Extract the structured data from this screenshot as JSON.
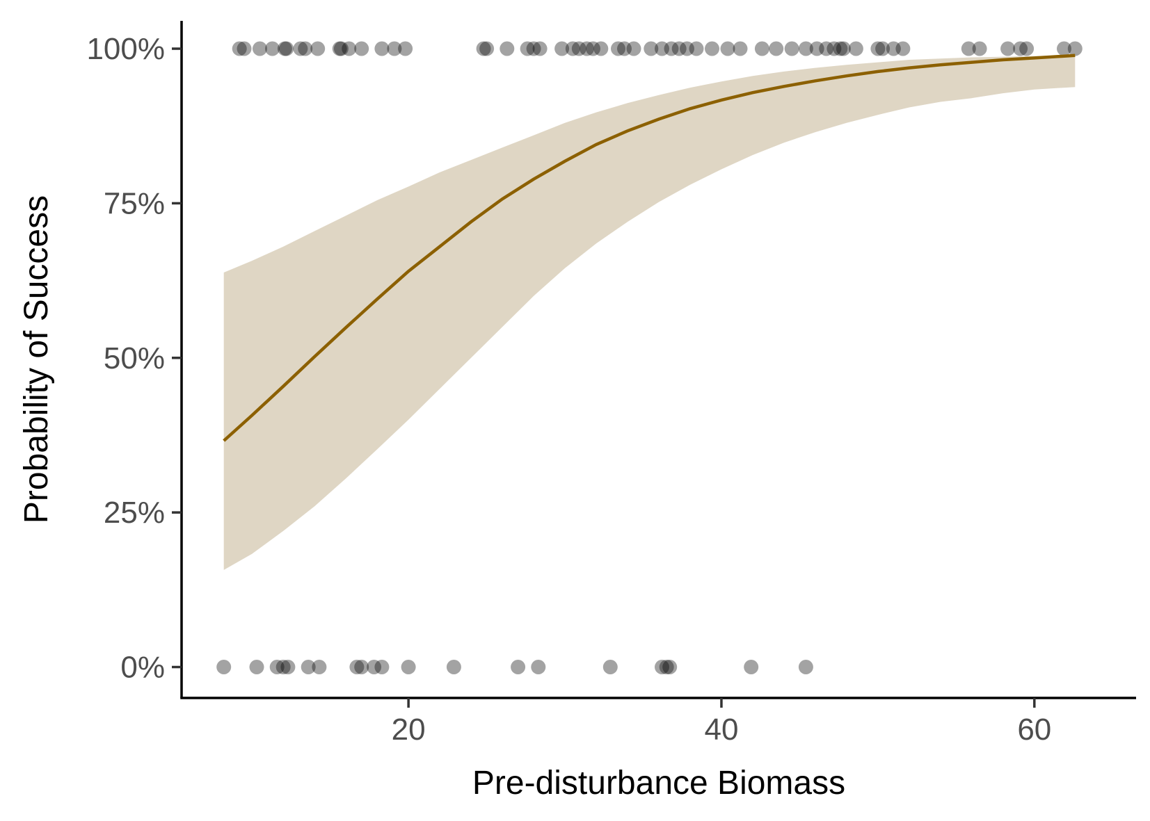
{
  "chart_data": {
    "type": "scatter",
    "title": "",
    "xlabel": "Pre-disturbance Biomass",
    "ylabel": "Probability of Success",
    "xlim": [
      5.5,
      66.5
    ],
    "ylim": [
      -0.05,
      1.045
    ],
    "x_ticks": [
      {
        "value": 20,
        "label": "20"
      },
      {
        "value": 40,
        "label": "40"
      },
      {
        "value": 60,
        "label": "60"
      }
    ],
    "y_ticks": [
      {
        "value": 0,
        "label": "0%"
      },
      {
        "value": 0.25,
        "label": "25%"
      },
      {
        "value": 0.5,
        "label": "50%"
      },
      {
        "value": 0.75,
        "label": "75%"
      },
      {
        "value": 1,
        "label": "100%"
      }
    ],
    "grid": false,
    "legend": "none",
    "colors": {
      "fit_line": "#8c6000",
      "ribbon": "#dfd6c4",
      "points": "#000000"
    },
    "fit": {
      "x": [
        8.2,
        10,
        12,
        14,
        16,
        18,
        20,
        22,
        24,
        26,
        28,
        30,
        32,
        34,
        36,
        38,
        40,
        42,
        44,
        46,
        48,
        50,
        52,
        54,
        56,
        58,
        60,
        62.6
      ],
      "y": [
        0.366,
        0.407,
        0.454,
        0.502,
        0.549,
        0.595,
        0.64,
        0.68,
        0.72,
        0.757,
        0.789,
        0.818,
        0.845,
        0.867,
        0.886,
        0.903,
        0.917,
        0.929,
        0.939,
        0.948,
        0.956,
        0.963,
        0.969,
        0.974,
        0.978,
        0.982,
        0.985,
        0.989
      ],
      "lower": [
        0.157,
        0.183,
        0.22,
        0.26,
        0.305,
        0.352,
        0.4,
        0.45,
        0.5,
        0.55,
        0.6,
        0.645,
        0.685,
        0.72,
        0.752,
        0.78,
        0.805,
        0.828,
        0.848,
        0.865,
        0.88,
        0.893,
        0.905,
        0.914,
        0.92,
        0.928,
        0.934,
        0.938
      ],
      "upper": [
        0.638,
        0.657,
        0.68,
        0.705,
        0.73,
        0.755,
        0.777,
        0.8,
        0.82,
        0.84,
        0.86,
        0.88,
        0.897,
        0.912,
        0.925,
        0.937,
        0.947,
        0.956,
        0.963,
        0.969,
        0.974,
        0.978,
        0.982,
        0.984,
        0.986,
        0.987,
        0.988,
        0.99
      ]
    },
    "points": [
      {
        "x": 9.2,
        "y": 1
      },
      {
        "x": 9.5,
        "y": 1
      },
      {
        "x": 10.5,
        "y": 1
      },
      {
        "x": 11.3,
        "y": 1
      },
      {
        "x": 12.1,
        "y": 1
      },
      {
        "x": 12.2,
        "y": 1
      },
      {
        "x": 13.1,
        "y": 1
      },
      {
        "x": 13.4,
        "y": 1
      },
      {
        "x": 14.2,
        "y": 1
      },
      {
        "x": 15.6,
        "y": 1
      },
      {
        "x": 15.7,
        "y": 1
      },
      {
        "x": 16.2,
        "y": 1
      },
      {
        "x": 17.0,
        "y": 1
      },
      {
        "x": 18.3,
        "y": 1
      },
      {
        "x": 19.1,
        "y": 1
      },
      {
        "x": 19.8,
        "y": 1
      },
      {
        "x": 24.8,
        "y": 1
      },
      {
        "x": 25.0,
        "y": 1
      },
      {
        "x": 26.3,
        "y": 1
      },
      {
        "x": 27.6,
        "y": 1
      },
      {
        "x": 28.0,
        "y": 1
      },
      {
        "x": 28.4,
        "y": 1
      },
      {
        "x": 29.8,
        "y": 1
      },
      {
        "x": 30.5,
        "y": 1
      },
      {
        "x": 30.9,
        "y": 1
      },
      {
        "x": 31.4,
        "y": 1
      },
      {
        "x": 31.8,
        "y": 1
      },
      {
        "x": 32.3,
        "y": 1
      },
      {
        "x": 33.4,
        "y": 1
      },
      {
        "x": 33.8,
        "y": 1
      },
      {
        "x": 34.4,
        "y": 1
      },
      {
        "x": 35.5,
        "y": 1
      },
      {
        "x": 36.2,
        "y": 1
      },
      {
        "x": 36.8,
        "y": 1
      },
      {
        "x": 37.3,
        "y": 1
      },
      {
        "x": 37.8,
        "y": 1
      },
      {
        "x": 38.4,
        "y": 1
      },
      {
        "x": 39.4,
        "y": 1
      },
      {
        "x": 40.4,
        "y": 1
      },
      {
        "x": 41.2,
        "y": 1
      },
      {
        "x": 42.6,
        "y": 1
      },
      {
        "x": 43.5,
        "y": 1
      },
      {
        "x": 44.5,
        "y": 1
      },
      {
        "x": 45.4,
        "y": 1
      },
      {
        "x": 46.1,
        "y": 1
      },
      {
        "x": 46.7,
        "y": 1
      },
      {
        "x": 47.2,
        "y": 1
      },
      {
        "x": 47.6,
        "y": 1
      },
      {
        "x": 47.8,
        "y": 1
      },
      {
        "x": 48.6,
        "y": 1
      },
      {
        "x": 50.0,
        "y": 1
      },
      {
        "x": 50.3,
        "y": 1
      },
      {
        "x": 51.0,
        "y": 1
      },
      {
        "x": 51.6,
        "y": 1
      },
      {
        "x": 55.8,
        "y": 1
      },
      {
        "x": 56.5,
        "y": 1
      },
      {
        "x": 58.3,
        "y": 1
      },
      {
        "x": 59.1,
        "y": 1
      },
      {
        "x": 59.5,
        "y": 1
      },
      {
        "x": 61.9,
        "y": 1
      },
      {
        "x": 62.6,
        "y": 1
      },
      {
        "x": 8.2,
        "y": 0
      },
      {
        "x": 10.3,
        "y": 0
      },
      {
        "x": 11.6,
        "y": 0
      },
      {
        "x": 12.0,
        "y": 0
      },
      {
        "x": 12.3,
        "y": 0
      },
      {
        "x": 13.6,
        "y": 0
      },
      {
        "x": 14.3,
        "y": 0
      },
      {
        "x": 16.7,
        "y": 0
      },
      {
        "x": 17.0,
        "y": 0
      },
      {
        "x": 17.8,
        "y": 0
      },
      {
        "x": 18.3,
        "y": 0
      },
      {
        "x": 20.0,
        "y": 0
      },
      {
        "x": 22.9,
        "y": 0
      },
      {
        "x": 27.0,
        "y": 0
      },
      {
        "x": 28.3,
        "y": 0
      },
      {
        "x": 32.9,
        "y": 0
      },
      {
        "x": 36.2,
        "y": 0
      },
      {
        "x": 36.5,
        "y": 0
      },
      {
        "x": 36.7,
        "y": 0
      },
      {
        "x": 41.9,
        "y": 0
      },
      {
        "x": 45.4,
        "y": 0
      }
    ]
  }
}
